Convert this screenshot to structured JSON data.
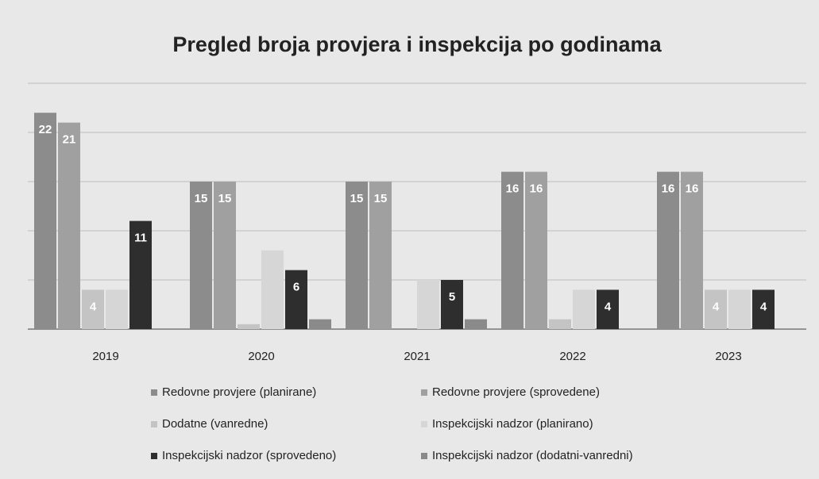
{
  "chart_data": {
    "type": "bar",
    "title": "Pregled broja provjera i inspekcija po godinama",
    "categories": [
      "2019",
      "2020",
      "2021",
      "2022",
      "2023"
    ],
    "series": [
      {
        "name": "Redovne provjere (planirane)",
        "color": "#8c8c8c",
        "values": [
          22,
          15,
          15,
          16,
          16
        ],
        "show_labels": true
      },
      {
        "name": "Redovne provjere (sprovedene)",
        "color": "#a0a0a0",
        "values": [
          21,
          15,
          15,
          16,
          16
        ],
        "show_labels": true
      },
      {
        "name": "Dodatne (vanredne)",
        "color": "#c4c4c4",
        "values": [
          4,
          0.5,
          0,
          1,
          4
        ],
        "show_labels": true
      },
      {
        "name": "Inspekcijski nadzor (planirano)",
        "color": "#d6d6d6",
        "values": [
          4,
          8,
          5,
          4,
          4
        ],
        "show_labels": false
      },
      {
        "name": "Inspekcijski nadzor (sprovedeno)",
        "color": "#2e2e2e",
        "values": [
          11,
          6,
          5,
          4,
          4
        ],
        "show_labels": true
      },
      {
        "name": "Inspekcijski nadzor (dodatni-vanredni)",
        "color": "#8a8a8a",
        "values": [
          0,
          1,
          1,
          0,
          0
        ],
        "show_labels": false
      }
    ],
    "ylim": [
      0,
      25
    ],
    "yticks": [
      0,
      5,
      10,
      15,
      20,
      25
    ],
    "grid": true,
    "legend": "bottom"
  }
}
